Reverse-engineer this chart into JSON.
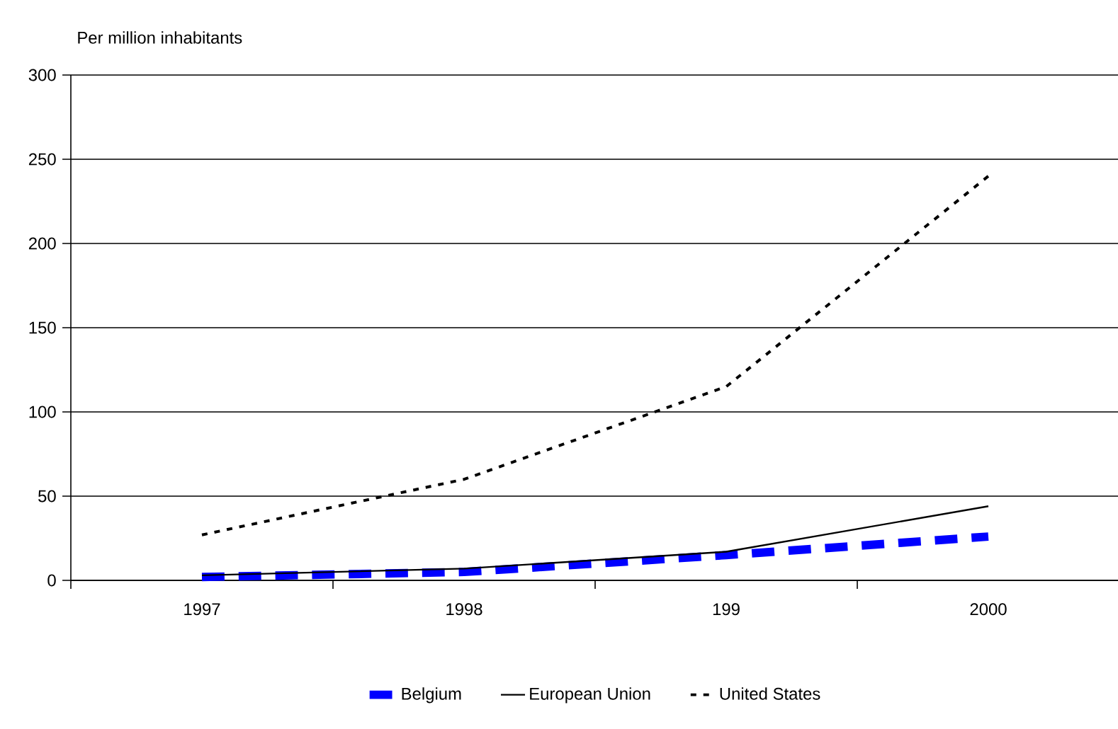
{
  "chart_data": {
    "type": "line",
    "ylabel": "Per million inhabitants",
    "categories": [
      "1997",
      "1998",
      "199",
      "2000"
    ],
    "series": [
      {
        "name": "Belgium",
        "color": "#0000ff",
        "line_style": "dashed",
        "values": [
          2,
          5,
          15,
          26
        ]
      },
      {
        "name": "European Union",
        "color": "#000000",
        "line_style": "solid",
        "values": [
          3,
          7,
          17,
          44
        ]
      },
      {
        "name": "United States",
        "color": "#000000",
        "line_style": "dotted",
        "values": [
          27,
          60,
          115,
          240
        ]
      }
    ],
    "ylim": [
      0,
      300
    ],
    "yticks": [
      0,
      50,
      100,
      150,
      200,
      250,
      300
    ],
    "grid": "y",
    "legend": "bottom",
    "marker": "none"
  }
}
